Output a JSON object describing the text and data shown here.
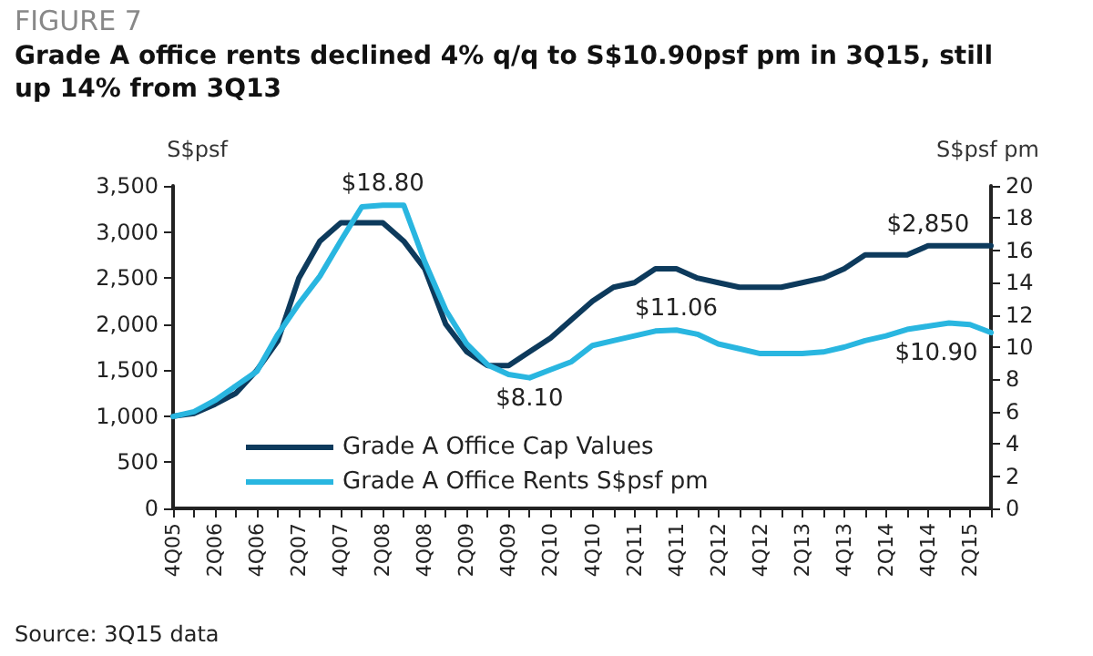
{
  "chart_data": {
    "type": "line",
    "subtitle": "FIGURE 7",
    "title": "Grade A office rents declined 4% q/q to S$10.90psf pm in 3Q15, still up 14% from 3Q13",
    "categories": [
      "4Q05",
      null,
      "2Q06",
      null,
      "4Q06",
      null,
      "2Q07",
      null,
      "4Q07",
      null,
      "2Q08",
      null,
      "4Q08",
      null,
      "2Q09",
      null,
      "4Q09",
      null,
      "2Q10",
      null,
      "4Q10",
      null,
      "2Q11",
      null,
      "4Q11",
      null,
      "2Q12",
      null,
      "4Q12",
      null,
      "2Q13",
      null,
      "4Q13",
      null,
      "2Q14",
      null,
      "4Q14",
      null,
      "2Q15",
      null
    ],
    "ylabel": "S$psf",
    "y2label": "S$psf pm",
    "ylim": [
      0,
      3500
    ],
    "yticks": [
      0,
      {
        "value": 500,
        "label": "500"
      },
      {
        "value": 1000,
        "label": "1,000"
      },
      {
        "value": 1500,
        "label": "1,500"
      },
      {
        "value": 2000,
        "label": "2,000"
      },
      {
        "value": 2500,
        "label": "2,500"
      },
      {
        "value": 3000,
        "label": "3,000"
      },
      {
        "value": 3500,
        "label": "3,500"
      }
    ],
    "y2lim": [
      0,
      20
    ],
    "y2ticks": [
      0,
      2,
      4,
      6,
      8,
      10,
      12,
      14,
      16,
      18,
      20
    ],
    "series": [
      {
        "name": "Grade A Office Cap Values",
        "color": "#0d3a5c",
        "values": [
          1000,
          1030,
          1130,
          1250,
          1500,
          1820,
          2500,
          2900,
          3100,
          3100,
          3100,
          2900,
          2600,
          2000,
          1700,
          1550,
          1550,
          1700,
          1850,
          2050,
          2250,
          2400,
          2450,
          2600,
          2600,
          2500,
          2450,
          2400,
          2400,
          2400,
          2450,
          2500,
          2600,
          2750,
          2750,
          2750,
          2850,
          2850,
          2850,
          2850
        ],
        "value_labels": [
          null,
          null,
          null,
          null,
          null,
          null,
          null,
          null,
          null,
          null,
          null,
          null,
          null,
          null,
          null,
          null,
          null,
          null,
          null,
          null,
          null,
          null,
          null,
          null,
          null,
          null,
          null,
          null,
          null,
          null,
          null,
          null,
          null,
          null,
          null,
          null,
          "$2,850",
          null,
          null,
          null
        ]
      },
      {
        "name": "Grade A Office Rents S$psf pm",
        "color": "#29b6e0",
        "axis": "y2",
        "values": [
          5.7,
          6,
          6.7,
          7.6,
          8.5,
          10.8,
          12.7,
          14.4,
          16.6,
          18.7,
          18.8,
          18.8,
          15.3,
          12.3,
          10.2,
          8.9,
          8.3,
          8.1,
          8.6,
          9.1,
          10.1,
          10.4,
          10.7,
          11,
          11.06,
          10.8,
          10.2,
          9.9,
          9.6,
          9.6,
          9.6,
          9.7,
          10,
          10.4,
          10.7,
          11.1,
          11.3,
          11.5,
          11.4,
          10.9
        ],
        "value_labels": [
          null,
          null,
          null,
          null,
          null,
          null,
          null,
          null,
          null,
          null,
          "$18.80",
          null,
          null,
          null,
          null,
          null,
          null,
          "$8.10",
          null,
          null,
          null,
          null,
          null,
          null,
          "$11.06",
          null,
          null,
          null,
          null,
          null,
          null,
          null,
          null,
          null,
          null,
          null,
          null,
          null,
          null,
          "$10.90"
        ]
      }
    ],
    "legend": "bottom left",
    "grid": false,
    "marker": "none",
    "line_style": "solid",
    "annotations": [
      "Source: 3Q15 data"
    ]
  }
}
